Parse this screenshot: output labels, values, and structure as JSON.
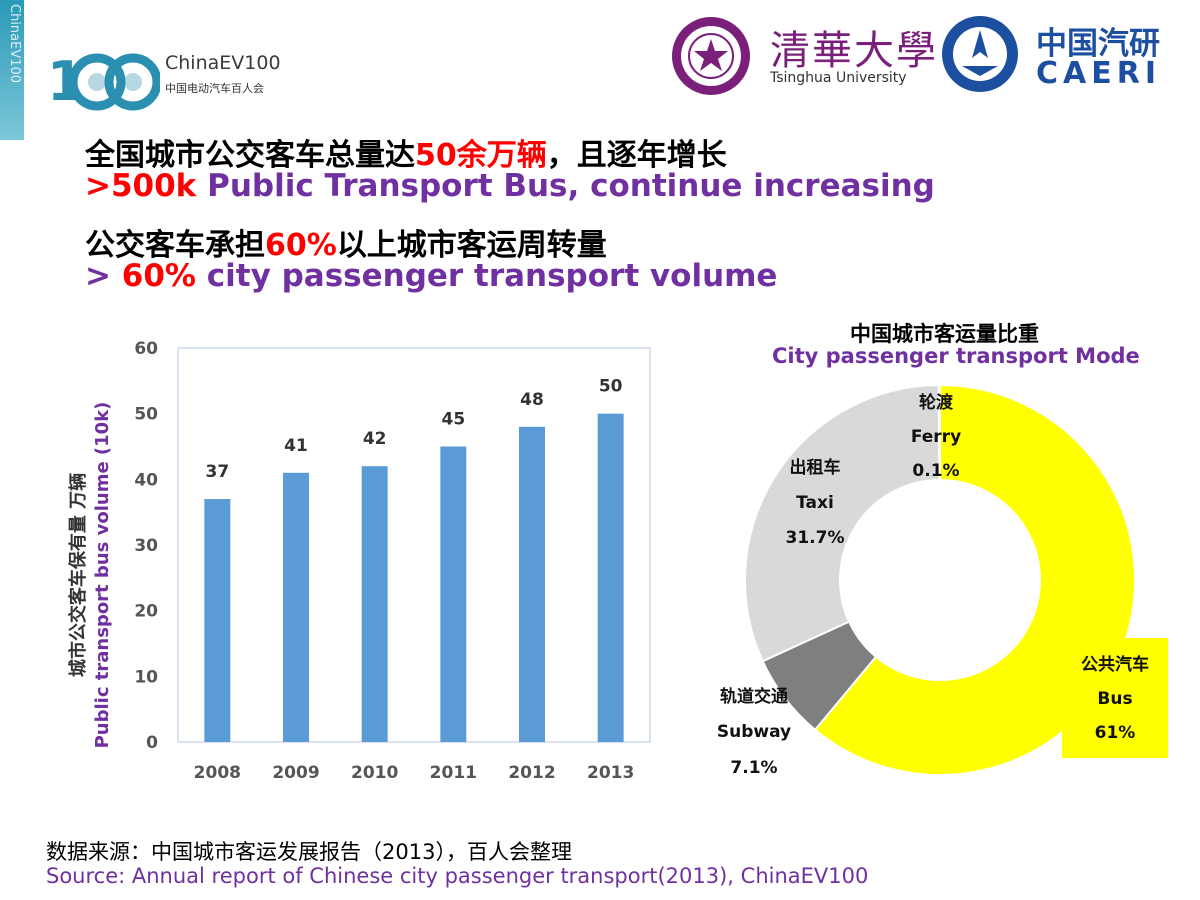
{
  "branding": {
    "edge_text": "ChinaEV100",
    "ev100_name": "ChinaEV100",
    "ev100_sub": "中国电动汽车百人会",
    "tsinghua_cn": "清華大學",
    "tsinghua_en": "Tsinghua University",
    "caeri_cn": "中国汽研",
    "caeri_en": "CAERI"
  },
  "headline": {
    "line1_cn_pre": "全国城市公交客车总量达",
    "line1_cn_highlight": "50余万辆",
    "line1_cn_post": "，且逐年增长",
    "line1_en_highlight": ">500k",
    "line1_en_rest": " Public Transport Bus, continue increasing",
    "line2_cn_pre": "公交客车承担",
    "line2_cn_highlight": "60%",
    "line2_cn_post": "以上城市客运周转量",
    "line2_en_pre": "> ",
    "line2_en_highlight": "60%",
    "line2_en_rest": " city passenger transport volume"
  },
  "colors": {
    "bar": "#5b9bd5",
    "bus": "#ffff00",
    "subway": "#7f7f7f",
    "taxi": "#d9d9d9",
    "ferry": "#bfbfbf",
    "purple": "#7030a0",
    "red": "#ff0000"
  },
  "chart_data": [
    {
      "type": "bar",
      "categories": [
        "2008",
        "2009",
        "2010",
        "2011",
        "2012",
        "2013"
      ],
      "values": [
        37,
        41,
        42,
        45,
        48,
        50
      ],
      "ylabel_cn": "城市公交客车保有量 万辆",
      "ylabel_en": "Public transport bus volume (10k)",
      "ylim": [
        0,
        60
      ],
      "yticks": [
        0,
        10,
        20,
        30,
        40,
        50,
        60
      ],
      "grid": false
    },
    {
      "type": "pie",
      "title_cn": "中国城市客运量比重",
      "title_en": "City passenger transport Mode",
      "slices": [
        {
          "name_cn": "公共汽车",
          "name_en": "Bus",
          "value": 61,
          "label": "61%",
          "color": "#ffff00"
        },
        {
          "name_cn": "轨道交通",
          "name_en": "Subway",
          "value": 7.1,
          "label": "7.1%",
          "color": "#7f7f7f"
        },
        {
          "name_cn": "出租车",
          "name_en": "Taxi",
          "value": 31.7,
          "label": "31.7%",
          "color": "#d9d9d9"
        },
        {
          "name_cn": "轮渡",
          "name_en": "Ferry",
          "value": 0.1,
          "label": "0.1%",
          "color": "#bfbfbf"
        }
      ]
    }
  ],
  "source": {
    "cn": "数据来源：中国城市客运发展报告（2013），百人会整理",
    "en": "Source: Annual report of Chinese city passenger transport(2013), ChinaEV100"
  }
}
